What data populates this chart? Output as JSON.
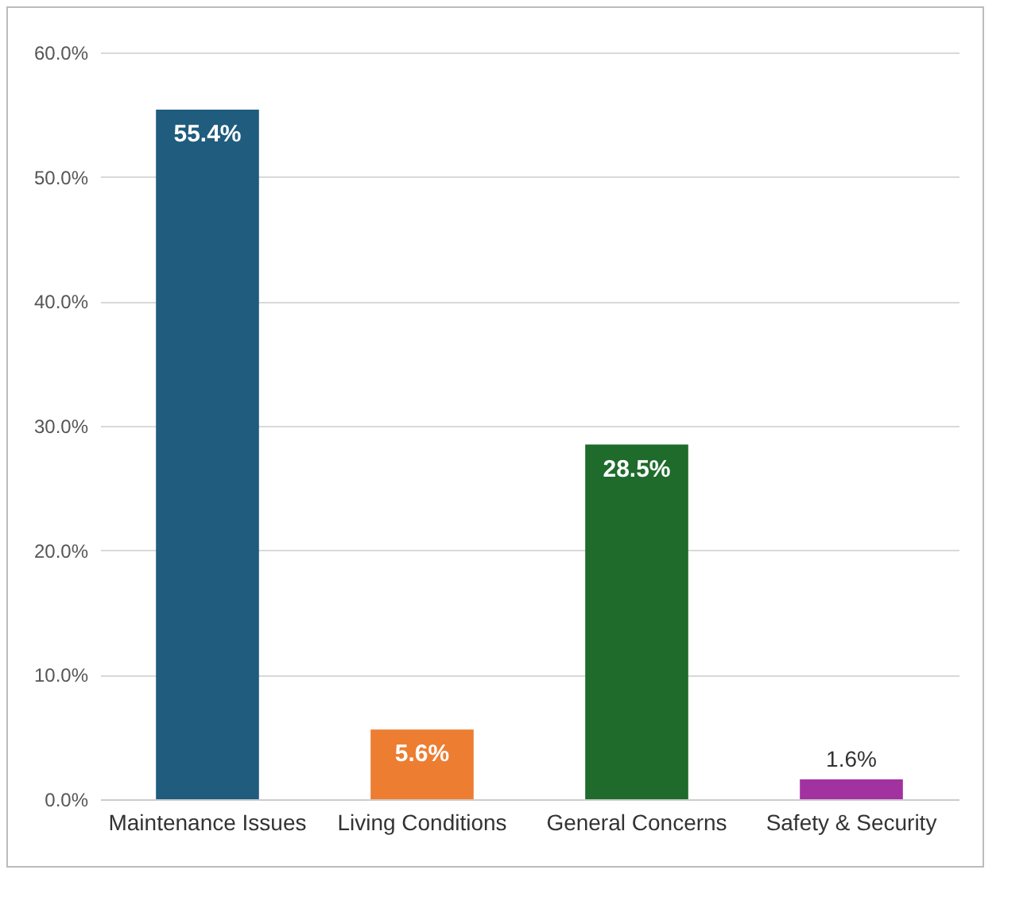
{
  "chart_data": {
    "type": "bar",
    "categories": [
      "Maintenance Issues",
      "Living Conditions",
      "General Concerns",
      "Safety & Security"
    ],
    "values": [
      55.4,
      5.6,
      28.5,
      1.6
    ],
    "colors": [
      "#1f5c7e",
      "#ed7d31",
      "#1e6b2c",
      "#a2329f"
    ],
    "value_labels": [
      "55.4%",
      "5.6%",
      "28.5%",
      "1.6%"
    ],
    "ylim": [
      0,
      60
    ],
    "yticks": [
      {
        "value": 0,
        "label": "0.0%"
      },
      {
        "value": 10,
        "label": "10.0%"
      },
      {
        "value": 20,
        "label": "20.0%"
      },
      {
        "value": 30,
        "label": "30.0%"
      },
      {
        "value": 40,
        "label": "40.0%"
      },
      {
        "value": 50,
        "label": "50.0%"
      },
      {
        "value": 60,
        "label": "60.0%"
      }
    ],
    "grid": "y"
  }
}
